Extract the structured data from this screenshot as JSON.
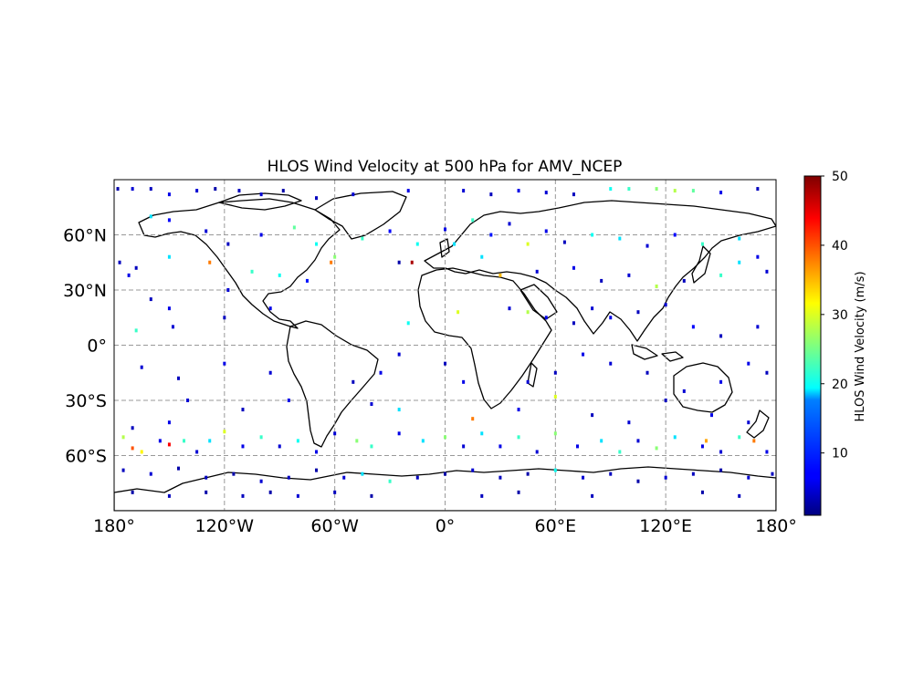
{
  "title": "HLOS Wind Velocity at 500 hPa for AMV_NCEP",
  "map": {
    "projection": "PlateCarree",
    "extent": {
      "lon": [
        -180,
        180
      ],
      "lat": [
        -90,
        90
      ]
    },
    "gridlines": "dashed",
    "coastlines": true,
    "lon_ticks": [
      {
        "value": -180,
        "label": "180°"
      },
      {
        "value": -120,
        "label": "120°W"
      },
      {
        "value": -60,
        "label": "60°W"
      },
      {
        "value": 0,
        "label": "0°"
      },
      {
        "value": 60,
        "label": "60°E"
      },
      {
        "value": 120,
        "label": "120°E"
      },
      {
        "value": 180,
        "label": "180°"
      }
    ],
    "lat_ticks": [
      {
        "value": 60,
        "label": "60°N"
      },
      {
        "value": 30,
        "label": "30°N"
      },
      {
        "value": 0,
        "label": "0°"
      },
      {
        "value": -30,
        "label": "30°S"
      },
      {
        "value": -60,
        "label": "60°S"
      }
    ]
  },
  "colorbar": {
    "label": "HLOS Wind Velocity (m/s)",
    "colormap": "jet",
    "min": 1,
    "max": 50,
    "ticks": [
      10,
      20,
      30,
      40,
      50
    ]
  },
  "chart_data": {
    "type": "scatter",
    "title": "HLOS Wind Velocity at 500 hPa for AMV_NCEP",
    "xlabel": "",
    "ylabel": "",
    "xlim": [
      -180,
      180
    ],
    "ylim": [
      -90,
      90
    ],
    "value_label": "HLOS Wind Velocity (m/s)",
    "value_range": [
      1,
      50
    ],
    "points": [
      {
        "lon": -178,
        "lat": 85,
        "v": 3
      },
      {
        "lon": -170,
        "lat": 85,
        "v": 5
      },
      {
        "lon": -160,
        "lat": 85,
        "v": 4
      },
      {
        "lon": -150,
        "lat": 82,
        "v": 6
      },
      {
        "lon": -135,
        "lat": 84,
        "v": 5
      },
      {
        "lon": -125,
        "lat": 85,
        "v": 3
      },
      {
        "lon": -112,
        "lat": 84,
        "v": 4
      },
      {
        "lon": -100,
        "lat": 82,
        "v": 5
      },
      {
        "lon": -88,
        "lat": 84,
        "v": 3
      },
      {
        "lon": -70,
        "lat": 80,
        "v": 4
      },
      {
        "lon": -50,
        "lat": 82,
        "v": 5
      },
      {
        "lon": -20,
        "lat": 84,
        "v": 6
      },
      {
        "lon": 10,
        "lat": 84,
        "v": 5
      },
      {
        "lon": 25,
        "lat": 82,
        "v": 4
      },
      {
        "lon": 40,
        "lat": 84,
        "v": 6
      },
      {
        "lon": 55,
        "lat": 83,
        "v": 5
      },
      {
        "lon": 70,
        "lat": 82,
        "v": 4
      },
      {
        "lon": 90,
        "lat": 85,
        "v": 20
      },
      {
        "lon": 100,
        "lat": 85,
        "v": 22
      },
      {
        "lon": 115,
        "lat": 85,
        "v": 26
      },
      {
        "lon": 125,
        "lat": 84,
        "v": 28
      },
      {
        "lon": 135,
        "lat": 84,
        "v": 24
      },
      {
        "lon": 150,
        "lat": 83,
        "v": 6
      },
      {
        "lon": 170,
        "lat": 85,
        "v": 4
      },
      {
        "lon": -160,
        "lat": 70,
        "v": 18
      },
      {
        "lon": -150,
        "lat": 68,
        "v": 7
      },
      {
        "lon": -130,
        "lat": 62,
        "v": 5
      },
      {
        "lon": -118,
        "lat": 55,
        "v": 4
      },
      {
        "lon": -100,
        "lat": 60,
        "v": 6
      },
      {
        "lon": -82,
        "lat": 64,
        "v": 24
      },
      {
        "lon": -70,
        "lat": 55,
        "v": 20
      },
      {
        "lon": -60,
        "lat": 48,
        "v": 26
      },
      {
        "lon": -45,
        "lat": 58,
        "v": 22
      },
      {
        "lon": -30,
        "lat": 62,
        "v": 7
      },
      {
        "lon": -25,
        "lat": 45,
        "v": 3
      },
      {
        "lon": -15,
        "lat": 55,
        "v": 20
      },
      {
        "lon": 0,
        "lat": 63,
        "v": 6
      },
      {
        "lon": 5,
        "lat": 55,
        "v": 18
      },
      {
        "lon": 15,
        "lat": 68,
        "v": 22
      },
      {
        "lon": 25,
        "lat": 60,
        "v": 8
      },
      {
        "lon": 35,
        "lat": 66,
        "v": 5
      },
      {
        "lon": 45,
        "lat": 55,
        "v": 30
      },
      {
        "lon": 55,
        "lat": 62,
        "v": 6
      },
      {
        "lon": 65,
        "lat": 56,
        "v": 4
      },
      {
        "lon": 80,
        "lat": 60,
        "v": 20
      },
      {
        "lon": 95,
        "lat": 58,
        "v": 18
      },
      {
        "lon": 110,
        "lat": 54,
        "v": 5
      },
      {
        "lon": 125,
        "lat": 60,
        "v": 7
      },
      {
        "lon": 140,
        "lat": 55,
        "v": 22
      },
      {
        "lon": 160,
        "lat": 58,
        "v": 18
      },
      {
        "lon": 170,
        "lat": 48,
        "v": 6
      },
      {
        "lon": -177,
        "lat": 45,
        "v": 4
      },
      {
        "lon": -172,
        "lat": 38,
        "v": 6
      },
      {
        "lon": -168,
        "lat": 42,
        "v": 4
      },
      {
        "lon": -150,
        "lat": 48,
        "v": 18
      },
      {
        "lon": -128,
        "lat": 45,
        "v": 38
      },
      {
        "lon": -105,
        "lat": 40,
        "v": 22
      },
      {
        "lon": -90,
        "lat": 38,
        "v": 20
      },
      {
        "lon": -75,
        "lat": 35,
        "v": 8
      },
      {
        "lon": -62,
        "lat": 45,
        "v": 38
      },
      {
        "lon": -18,
        "lat": 45,
        "v": 48
      },
      {
        "lon": 20,
        "lat": 48,
        "v": 18
      },
      {
        "lon": 30,
        "lat": 38,
        "v": 35
      },
      {
        "lon": 50,
        "lat": 40,
        "v": 5
      },
      {
        "lon": 70,
        "lat": 42,
        "v": 6
      },
      {
        "lon": 85,
        "lat": 35,
        "v": 4
      },
      {
        "lon": 100,
        "lat": 38,
        "v": 5
      },
      {
        "lon": 115,
        "lat": 32,
        "v": 28
      },
      {
        "lon": 130,
        "lat": 35,
        "v": 4
      },
      {
        "lon": 150,
        "lat": 38,
        "v": 22
      },
      {
        "lon": 160,
        "lat": 45,
        "v": 18
      },
      {
        "lon": 175,
        "lat": 40,
        "v": 5
      },
      {
        "lon": -160,
        "lat": 25,
        "v": 4
      },
      {
        "lon": -150,
        "lat": 20,
        "v": 6
      },
      {
        "lon": -118,
        "lat": 30,
        "v": 5
      },
      {
        "lon": -168,
        "lat": 8,
        "v": 22
      },
      {
        "lon": -148,
        "lat": 10,
        "v": 5
      },
      {
        "lon": -120,
        "lat": 15,
        "v": 4
      },
      {
        "lon": -95,
        "lat": 20,
        "v": 6
      },
      {
        "lon": -20,
        "lat": 12,
        "v": 20
      },
      {
        "lon": 7,
        "lat": 18,
        "v": 30
      },
      {
        "lon": 35,
        "lat": 20,
        "v": 5
      },
      {
        "lon": 45,
        "lat": 18,
        "v": 28
      },
      {
        "lon": 55,
        "lat": 15,
        "v": 6
      },
      {
        "lon": 70,
        "lat": 12,
        "v": 4
      },
      {
        "lon": 80,
        "lat": 20,
        "v": 5
      },
      {
        "lon": 90,
        "lat": 15,
        "v": 6
      },
      {
        "lon": 105,
        "lat": 18,
        "v": 4
      },
      {
        "lon": 120,
        "lat": 22,
        "v": 5
      },
      {
        "lon": 135,
        "lat": 10,
        "v": 7
      },
      {
        "lon": 150,
        "lat": 5,
        "v": 4
      },
      {
        "lon": 170,
        "lat": 10,
        "v": 5
      },
      {
        "lon": 165,
        "lat": -10,
        "v": 6
      },
      {
        "lon": -165,
        "lat": -12,
        "v": 5
      },
      {
        "lon": -145,
        "lat": -18,
        "v": 4
      },
      {
        "lon": -120,
        "lat": -10,
        "v": 6
      },
      {
        "lon": -95,
        "lat": -15,
        "v": 5
      },
      {
        "lon": -50,
        "lat": -20,
        "v": 4
      },
      {
        "lon": -35,
        "lat": -15,
        "v": 6
      },
      {
        "lon": -25,
        "lat": -5,
        "v": 5
      },
      {
        "lon": 0,
        "lat": -10,
        "v": 4
      },
      {
        "lon": 10,
        "lat": -20,
        "v": 6
      },
      {
        "lon": 45,
        "lat": -20,
        "v": 5
      },
      {
        "lon": 60,
        "lat": -15,
        "v": 4
      },
      {
        "lon": 75,
        "lat": -5,
        "v": 6
      },
      {
        "lon": 90,
        "lat": -10,
        "v": 5
      },
      {
        "lon": 110,
        "lat": -15,
        "v": 4
      },
      {
        "lon": 130,
        "lat": -25,
        "v": 5
      },
      {
        "lon": 150,
        "lat": -20,
        "v": 6
      },
      {
        "lon": 175,
        "lat": -15,
        "v": 4
      },
      {
        "lon": -140,
        "lat": -30,
        "v": 5
      },
      {
        "lon": -110,
        "lat": -35,
        "v": 4
      },
      {
        "lon": -85,
        "lat": -30,
        "v": 6
      },
      {
        "lon": -40,
        "lat": -32,
        "v": 5
      },
      {
        "lon": -25,
        "lat": -35,
        "v": 18
      },
      {
        "lon": 15,
        "lat": -40,
        "v": 38
      },
      {
        "lon": 40,
        "lat": -35,
        "v": 6
      },
      {
        "lon": 60,
        "lat": -28,
        "v": 30
      },
      {
        "lon": 80,
        "lat": -38,
        "v": 4
      },
      {
        "lon": 100,
        "lat": -42,
        "v": 5
      },
      {
        "lon": 120,
        "lat": -30,
        "v": 4
      },
      {
        "lon": 145,
        "lat": -38,
        "v": 6
      },
      {
        "lon": 165,
        "lat": -42,
        "v": 5
      },
      {
        "lon": -170,
        "lat": -45,
        "v": 4
      },
      {
        "lon": -150,
        "lat": -42,
        "v": 6
      },
      {
        "lon": -175,
        "lat": -50,
        "v": 28
      },
      {
        "lon": -170,
        "lat": -56,
        "v": 40
      },
      {
        "lon": -165,
        "lat": -58,
        "v": 32
      },
      {
        "lon": -155,
        "lat": -52,
        "v": 6
      },
      {
        "lon": -150,
        "lat": -54,
        "v": 44
      },
      {
        "lon": -142,
        "lat": -52,
        "v": 22
      },
      {
        "lon": -135,
        "lat": -58,
        "v": 5
      },
      {
        "lon": -128,
        "lat": -52,
        "v": 18
      },
      {
        "lon": -120,
        "lat": -47,
        "v": 30
      },
      {
        "lon": -110,
        "lat": -55,
        "v": 6
      },
      {
        "lon": -100,
        "lat": -50,
        "v": 22
      },
      {
        "lon": -90,
        "lat": -55,
        "v": 5
      },
      {
        "lon": -80,
        "lat": -52,
        "v": 20
      },
      {
        "lon": -70,
        "lat": -58,
        "v": 6
      },
      {
        "lon": -60,
        "lat": -48,
        "v": 5
      },
      {
        "lon": -48,
        "lat": -52,
        "v": 26
      },
      {
        "lon": -40,
        "lat": -55,
        "v": 22
      },
      {
        "lon": -25,
        "lat": -48,
        "v": 6
      },
      {
        "lon": -12,
        "lat": -52,
        "v": 18
      },
      {
        "lon": 0,
        "lat": -50,
        "v": 26
      },
      {
        "lon": 10,
        "lat": -55,
        "v": 5
      },
      {
        "lon": 20,
        "lat": -48,
        "v": 18
      },
      {
        "lon": 30,
        "lat": -55,
        "v": 6
      },
      {
        "lon": 40,
        "lat": -50,
        "v": 22
      },
      {
        "lon": 50,
        "lat": -58,
        "v": 5
      },
      {
        "lon": 60,
        "lat": -48,
        "v": 26
      },
      {
        "lon": 72,
        "lat": -55,
        "v": 6
      },
      {
        "lon": 85,
        "lat": -52,
        "v": 18
      },
      {
        "lon": 95,
        "lat": -58,
        "v": 22
      },
      {
        "lon": 105,
        "lat": -52,
        "v": 5
      },
      {
        "lon": 115,
        "lat": -56,
        "v": 26
      },
      {
        "lon": 125,
        "lat": -50,
        "v": 18
      },
      {
        "lon": 140,
        "lat": -55,
        "v": 6
      },
      {
        "lon": 142,
        "lat": -52,
        "v": 36
      },
      {
        "lon": 150,
        "lat": -58,
        "v": 5
      },
      {
        "lon": 160,
        "lat": -50,
        "v": 22
      },
      {
        "lon": 168,
        "lat": -52,
        "v": 38
      },
      {
        "lon": 175,
        "lat": -58,
        "v": 6
      },
      {
        "lon": -175,
        "lat": -68,
        "v": 4
      },
      {
        "lon": -160,
        "lat": -70,
        "v": 5
      },
      {
        "lon": -145,
        "lat": -67,
        "v": 3
      },
      {
        "lon": -130,
        "lat": -72,
        "v": 4
      },
      {
        "lon": -115,
        "lat": -70,
        "v": 3
      },
      {
        "lon": -100,
        "lat": -74,
        "v": 5
      },
      {
        "lon": -85,
        "lat": -72,
        "v": 4
      },
      {
        "lon": -70,
        "lat": -68,
        "v": 3
      },
      {
        "lon": -55,
        "lat": -72,
        "v": 5
      },
      {
        "lon": -45,
        "lat": -70,
        "v": 18
      },
      {
        "lon": -30,
        "lat": -74,
        "v": 22
      },
      {
        "lon": -15,
        "lat": -72,
        "v": 4
      },
      {
        "lon": 0,
        "lat": -70,
        "v": 3
      },
      {
        "lon": 15,
        "lat": -68,
        "v": 5
      },
      {
        "lon": 30,
        "lat": -72,
        "v": 4
      },
      {
        "lon": 45,
        "lat": -70,
        "v": 3
      },
      {
        "lon": 60,
        "lat": -68,
        "v": 20
      },
      {
        "lon": 75,
        "lat": -72,
        "v": 5
      },
      {
        "lon": 90,
        "lat": -70,
        "v": 4
      },
      {
        "lon": 105,
        "lat": -74,
        "v": 3
      },
      {
        "lon": 120,
        "lat": -72,
        "v": 5
      },
      {
        "lon": 135,
        "lat": -70,
        "v": 4
      },
      {
        "lon": 150,
        "lat": -68,
        "v": 3
      },
      {
        "lon": 165,
        "lat": -72,
        "v": 5
      },
      {
        "lon": 178,
        "lat": -70,
        "v": 4
      },
      {
        "lon": -170,
        "lat": -80,
        "v": 3
      },
      {
        "lon": -150,
        "lat": -82,
        "v": 4
      },
      {
        "lon": -130,
        "lat": -80,
        "v": 3
      },
      {
        "lon": -110,
        "lat": -82,
        "v": 4
      },
      {
        "lon": -95,
        "lat": -80,
        "v": 3
      },
      {
        "lon": -80,
        "lat": -82,
        "v": 5
      },
      {
        "lon": -60,
        "lat": -80,
        "v": 4
      },
      {
        "lon": -40,
        "lat": -82,
        "v": 3
      },
      {
        "lon": 20,
        "lat": -82,
        "v": 4
      },
      {
        "lon": 40,
        "lat": -80,
        "v": 3
      },
      {
        "lon": 80,
        "lat": -82,
        "v": 4
      },
      {
        "lon": 140,
        "lat": -80,
        "v": 3
      },
      {
        "lon": 160,
        "lat": -82,
        "v": 4
      }
    ]
  }
}
